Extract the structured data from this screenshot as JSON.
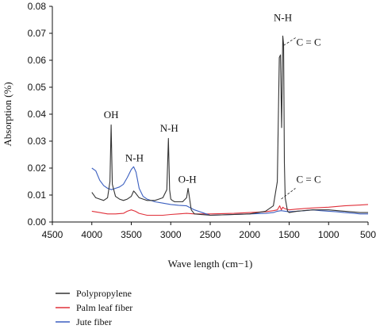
{
  "chart_data": {
    "type": "line",
    "xlabel": "Wave length (cm−1)",
    "ylabel": "Absorption (%)",
    "xlim": [
      4500,
      500
    ],
    "ylim": [
      0,
      0.08
    ],
    "x_ticks": [
      "4500",
      "4000",
      "3500",
      "3000",
      "2500",
      "2000",
      "1500",
      "1000",
      "500"
    ],
    "y_ticks": [
      "0.00",
      "0.01",
      "0.02",
      "0.03",
      "0.04",
      "0.05",
      "0.06",
      "0.07",
      "0.08"
    ],
    "grid": false,
    "legend_position": "bottom",
    "series": [
      {
        "name": "Polypropylene",
        "color": "#333333",
        "x": [
          4000,
          3950,
          3900,
          3850,
          3800,
          3770,
          3755,
          3740,
          3700,
          3650,
          3600,
          3550,
          3500,
          3470,
          3440,
          3400,
          3350,
          3300,
          3250,
          3200,
          3150,
          3100,
          3050,
          3030,
          3015,
          3000,
          2980,
          2950,
          2900,
          2850,
          2800,
          2780,
          2760,
          2740,
          2700,
          2500,
          2000,
          1800,
          1700,
          1650,
          1625,
          1610,
          1595,
          1580,
          1570,
          1560,
          1550,
          1520,
          1500,
          1400,
          1200,
          1000,
          800,
          600,
          500
        ],
        "y": [
          0.011,
          0.009,
          0.0085,
          0.008,
          0.009,
          0.015,
          0.036,
          0.014,
          0.0095,
          0.0085,
          0.008,
          0.0085,
          0.0095,
          0.0115,
          0.0105,
          0.009,
          0.0085,
          0.008,
          0.008,
          0.008,
          0.0085,
          0.009,
          0.012,
          0.031,
          0.012,
          0.0085,
          0.008,
          0.0075,
          0.0075,
          0.0075,
          0.009,
          0.0125,
          0.0085,
          0.0045,
          0.003,
          0.0025,
          0.003,
          0.004,
          0.006,
          0.015,
          0.061,
          0.062,
          0.035,
          0.069,
          0.066,
          0.022,
          0.009,
          0.004,
          0.0035,
          0.004,
          0.0045,
          0.0045,
          0.004,
          0.0035,
          0.0035
        ]
      },
      {
        "name": "Palm leaf fiber",
        "color": "#e0303a",
        "x": [
          4000,
          3900,
          3800,
          3700,
          3600,
          3550,
          3500,
          3450,
          3400,
          3300,
          3200,
          3100,
          3000,
          2900,
          2800,
          2700,
          2500,
          2200,
          2000,
          1800,
          1700,
          1650,
          1620,
          1600,
          1580,
          1560,
          1500,
          1400,
          1200,
          1000,
          800,
          600,
          500
        ],
        "y": [
          0.004,
          0.0035,
          0.003,
          0.003,
          0.0032,
          0.004,
          0.0045,
          0.004,
          0.0032,
          0.0025,
          0.0025,
          0.0025,
          0.0028,
          0.003,
          0.0032,
          0.003,
          0.003,
          0.0032,
          0.0035,
          0.0038,
          0.0042,
          0.0045,
          0.006,
          0.0045,
          0.0055,
          0.005,
          0.0045,
          0.0048,
          0.0052,
          0.0055,
          0.006,
          0.0063,
          0.0065
        ]
      },
      {
        "name": "Jute fiber",
        "color": "#3b5fc0",
        "x": [
          4000,
          3950,
          3900,
          3850,
          3800,
          3750,
          3700,
          3650,
          3600,
          3550,
          3500,
          3470,
          3440,
          3400,
          3350,
          3300,
          3200,
          3100,
          3000,
          2900,
          2800,
          2700,
          2500,
          2000,
          1800,
          1700,
          1650,
          1600,
          1550,
          1500,
          1400,
          1300,
          1200,
          1100,
          1000,
          900,
          800,
          700,
          600,
          500
        ],
        "y": [
          0.02,
          0.019,
          0.0155,
          0.0135,
          0.0125,
          0.012,
          0.0125,
          0.013,
          0.014,
          0.0165,
          0.0195,
          0.0205,
          0.0185,
          0.0125,
          0.0095,
          0.0085,
          0.0075,
          0.007,
          0.0065,
          0.0062,
          0.006,
          0.0045,
          0.0025,
          0.003,
          0.0032,
          0.0035,
          0.004,
          0.0042,
          0.004,
          0.0038,
          0.004,
          0.0042,
          0.0045,
          0.0042,
          0.004,
          0.0038,
          0.0035,
          0.0033,
          0.003,
          0.003
        ]
      }
    ],
    "annotations": [
      {
        "text": "OH",
        "x": 3755,
        "y": 0.0385,
        "anchor": "middle"
      },
      {
        "text": "N-H",
        "x": 3460,
        "y": 0.0225,
        "anchor": "middle"
      },
      {
        "text": "N-H",
        "x": 3020,
        "y": 0.0335,
        "anchor": "middle"
      },
      {
        "text": "O-H",
        "x": 2790,
        "y": 0.0145,
        "anchor": "middle"
      },
      {
        "text": "N-H",
        "x": 1580,
        "y": 0.0745,
        "anchor": "middle"
      },
      {
        "text": "C = C",
        "x": 1410,
        "y": 0.0655,
        "anchor": "start"
      },
      {
        "text": "C = C",
        "x": 1410,
        "y": 0.0145,
        "anchor": "start"
      }
    ],
    "annotation_leaders": [
      {
        "x1": 1570,
        "y1": 0.0655,
        "x2": 1410,
        "y2": 0.0685
      },
      {
        "x1": 1600,
        "y1": 0.0085,
        "x2": 1420,
        "y2": 0.0125
      }
    ]
  }
}
